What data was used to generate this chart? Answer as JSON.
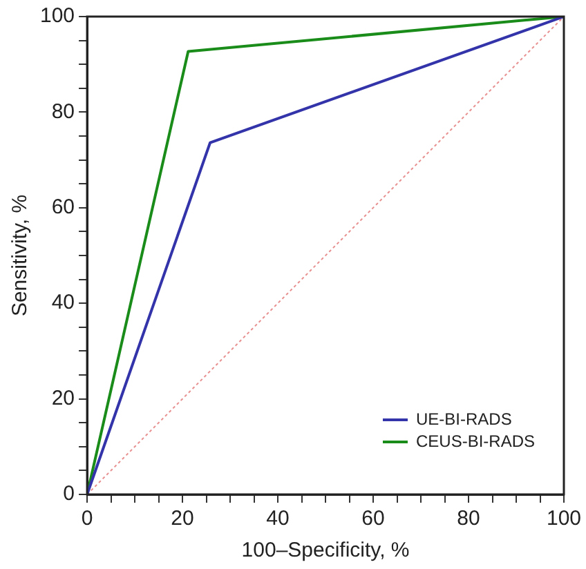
{
  "chart_data": {
    "type": "line",
    "xlabel": "100–Specificity, %",
    "ylabel": "Sensitivity, %",
    "xlim": [
      0,
      100
    ],
    "ylim": [
      0,
      100
    ],
    "xticks": [
      0,
      {
        "value": 5,
        "label": null
      },
      {
        "value": 10,
        "label": null
      },
      {
        "value": 15,
        "label": null
      },
      20,
      {
        "value": 25,
        "label": null
      },
      {
        "value": 30,
        "label": null
      },
      {
        "value": 35,
        "label": null
      },
      40,
      {
        "value": 45,
        "label": null
      },
      {
        "value": 50,
        "label": null
      },
      {
        "value": 55,
        "label": null
      },
      60,
      {
        "value": 65,
        "label": null
      },
      {
        "value": 70,
        "label": null
      },
      {
        "value": 75,
        "label": null
      },
      80,
      {
        "value": 85,
        "label": null
      },
      {
        "value": 90,
        "label": null
      },
      {
        "value": 95,
        "label": null
      },
      100
    ],
    "yticks": [
      0,
      {
        "value": 5,
        "label": null
      },
      {
        "value": 10,
        "label": null
      },
      {
        "value": 15,
        "label": null
      },
      20,
      {
        "value": 25,
        "label": null
      },
      {
        "value": 30,
        "label": null
      },
      {
        "value": 35,
        "label": null
      },
      40,
      {
        "value": 45,
        "label": null
      },
      {
        "value": 50,
        "label": null
      },
      {
        "value": 55,
        "label": null
      },
      60,
      {
        "value": 65,
        "label": null
      },
      {
        "value": 70,
        "label": null
      },
      {
        "value": 75,
        "label": null
      },
      80,
      {
        "value": 85,
        "label": null
      },
      {
        "value": 90,
        "label": null
      },
      {
        "value": 95,
        "label": null
      },
      100
    ],
    "grid": false,
    "legend": "bottom right",
    "marker": "none",
    "series": [
      {
        "name": "UE-BI-RADS",
        "color": "#3333aa",
        "x": [
          0,
          25.8,
          100
        ],
        "values": [
          0,
          73.6,
          100
        ]
      },
      {
        "name": "CEUS-BI-RADS",
        "color": "#1a8c1a",
        "x": [
          0,
          21.2,
          100
        ],
        "values": [
          0,
          92.7,
          100
        ]
      },
      {
        "color": "#e89090",
        "x": [
          0,
          100
        ],
        "values": [
          0,
          100
        ],
        "line_style": "dotted"
      }
    ]
  }
}
